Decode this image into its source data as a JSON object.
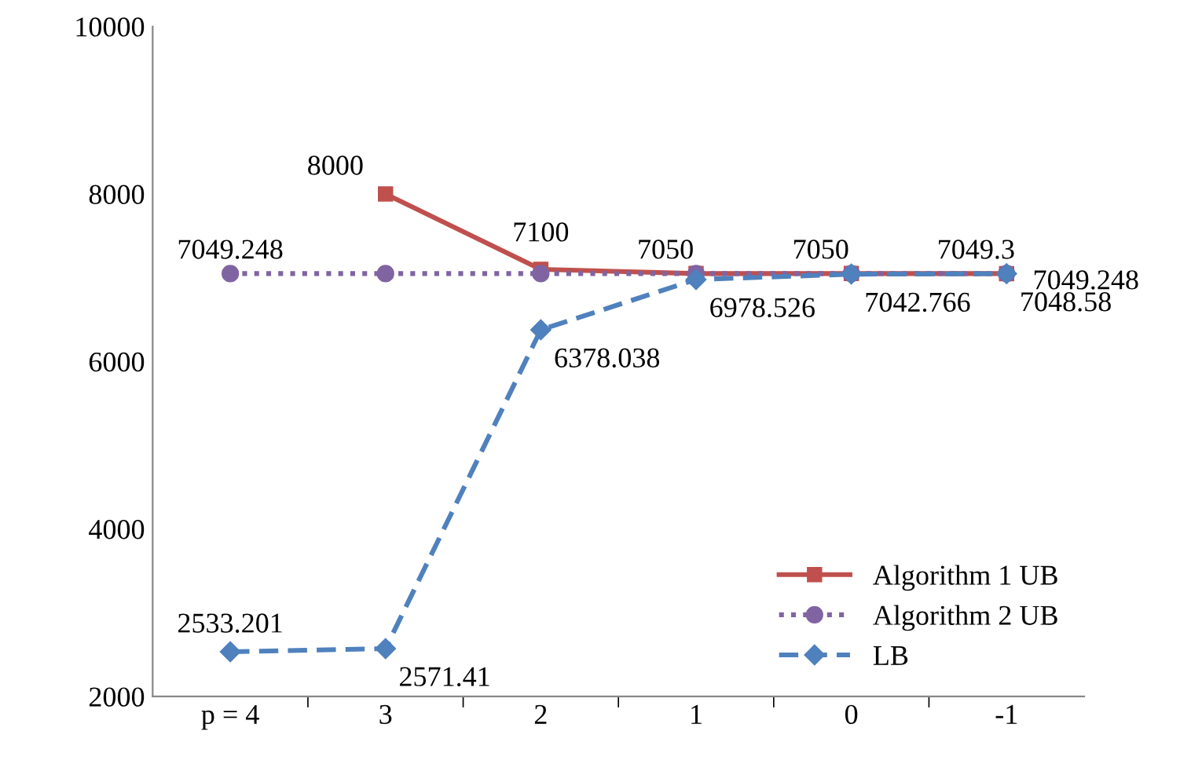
{
  "chart_data": {
    "type": "line",
    "categories": [
      "p = 4",
      "3",
      "2",
      "1",
      "0",
      "-1"
    ],
    "ylim": [
      2000,
      10000
    ],
    "yticks": [
      2000,
      4000,
      6000,
      8000,
      10000
    ],
    "grid": false,
    "legend": "bottom right",
    "series": [
      {
        "name": "Algorithm 1 UB",
        "color": "#c0504d",
        "marker": "square",
        "line_style": "solid",
        "values": [
          null,
          8000,
          7100,
          7050,
          7050,
          7049.3
        ],
        "value_labels": [
          null,
          "8000",
          "7100",
          "7050",
          "7050",
          "7049.3"
        ]
      },
      {
        "name": "Algorithm 2 UB",
        "color": "#8064a2",
        "marker": "circle",
        "line_style": "dotted",
        "values": [
          7049.248,
          7049.248,
          7049.248,
          7049.248,
          7049.248,
          7049.248
        ],
        "value_labels": [
          "7049.248",
          null,
          null,
          null,
          null,
          "7049.248"
        ]
      },
      {
        "name": "LB",
        "color": "#4f81bd",
        "marker": "diamond",
        "line_style": "dashed",
        "values": [
          2533.201,
          2571.41,
          6378.038,
          6978.526,
          7042.766,
          7048.58
        ],
        "value_labels": [
          "2533.201",
          "2571.41",
          "6378.038",
          "6978.526",
          "7042.766",
          "7048.58"
        ]
      }
    ]
  }
}
